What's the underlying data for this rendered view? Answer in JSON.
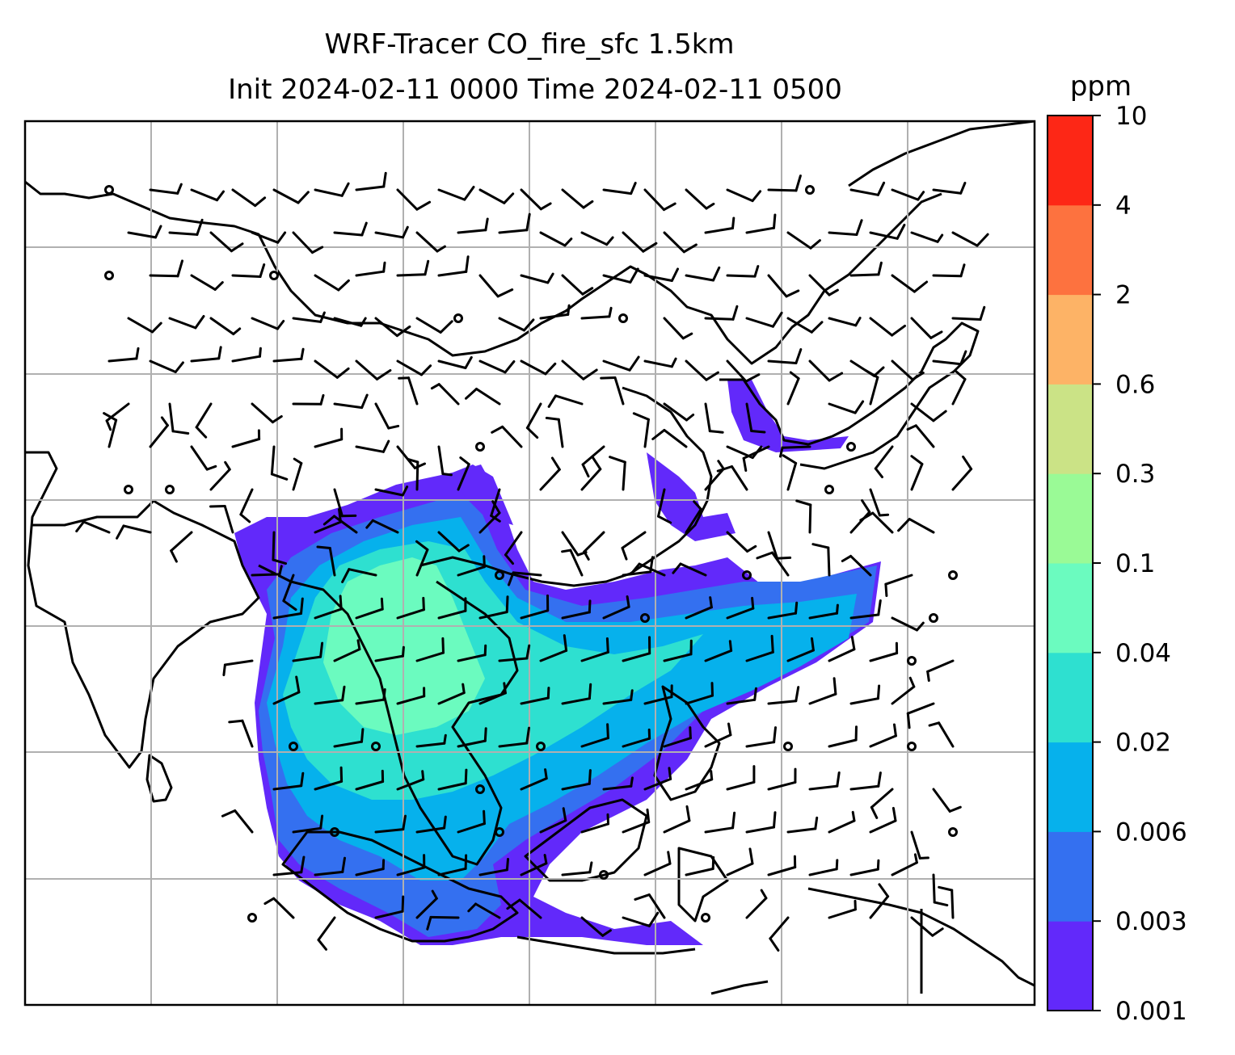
{
  "title": {
    "line1": "WRF-Tracer CO_fire_sfc 1.5km",
    "line2": "Init 2024-02-11 0000 Time 2024-02-11 0500"
  },
  "colorbar": {
    "unit": "ppm",
    "ticks": [
      "0.001",
      "0.003",
      "0.006",
      "0.02",
      "0.04",
      "0.1",
      "0.3",
      "0.6",
      "2",
      "4",
      "10"
    ],
    "colors": [
      "#6229fa",
      "#3470f0",
      "#06b1ec",
      "#2ee0d0",
      "#6bfbbf",
      "#9afa96",
      "#cbe386",
      "#fdb366",
      "#fd723f",
      "#fd2716"
    ]
  },
  "map": {
    "type": "filled contour map with wind barbs",
    "gridlines": true,
    "coastline_color": "#000000",
    "plume_colors": {
      "lowest": "#6229fa",
      "low": "#3470f0",
      "mid": "#06b1ec",
      "upper": "#2ee0d0",
      "high": "#6bfbbf"
    }
  }
}
